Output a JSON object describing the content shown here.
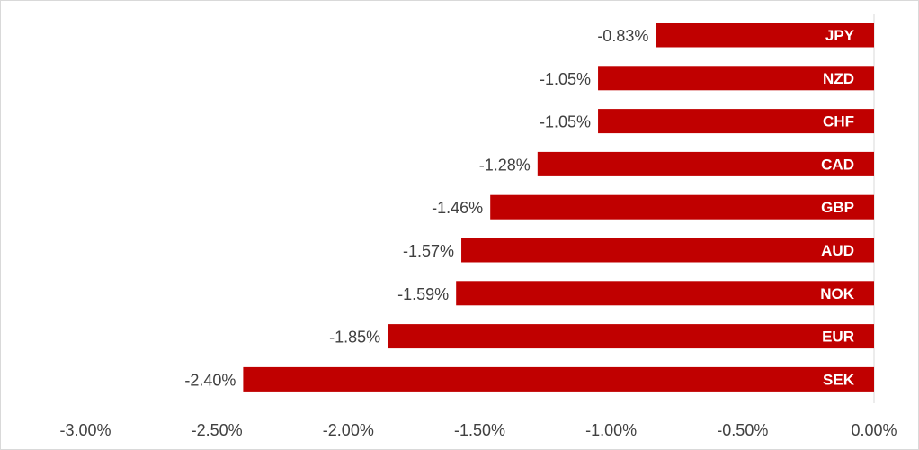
{
  "chart_data": {
    "type": "bar",
    "orientation": "horizontal",
    "categories": [
      "JPY",
      "NZD",
      "CHF",
      "CAD",
      "GBP",
      "AUD",
      "NOK",
      "EUR",
      "SEK"
    ],
    "values": [
      -0.83,
      -1.05,
      -1.05,
      -1.28,
      -1.46,
      -1.57,
      -1.59,
      -1.85,
      -2.4
    ],
    "value_labels": [
      "-0.83%",
      "-1.05%",
      "-1.05%",
      "-1.28%",
      "-1.46%",
      "-1.57%",
      "-1.59%",
      "-1.85%",
      "-2.40%"
    ],
    "x_ticks": [
      -3.0,
      -2.5,
      -2.0,
      -1.5,
      -1.0,
      -0.5,
      0.0
    ],
    "x_tick_labels": [
      "-3.00%",
      "-2.50%",
      "-2.00%",
      "-1.50%",
      "-1.00%",
      "-0.50%",
      "0.00%"
    ],
    "xlim": [
      -3.0,
      0.0
    ],
    "grid": false,
    "legend": "none",
    "bar_color": "#c00000"
  }
}
